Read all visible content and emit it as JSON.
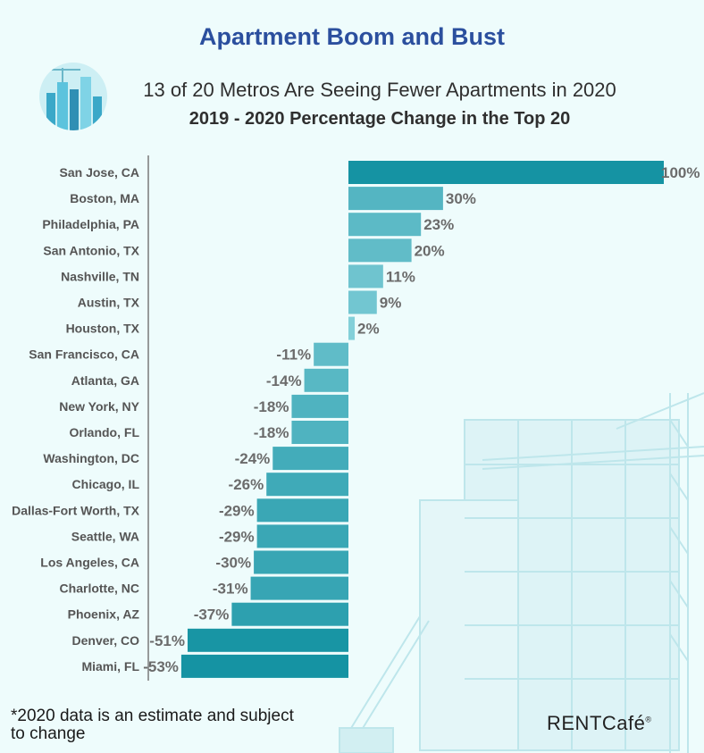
{
  "header": {
    "title": "Apartment Boom and Bust",
    "subtitle": "13 of 20 Metros Are Seeing Fewer Apartments in 2020",
    "subtitle2": "2019 - 2020 Percentage Change in the Top 20"
  },
  "footer": {
    "note": "*2020 data is an estimate and subject to change",
    "brand": "RENTCafé",
    "brand_mark": "®"
  },
  "colors": {
    "background": "#eefcfc",
    "title": "#2b4f9e",
    "bar_dark": "#1797a6",
    "bar_light": "#8fd6df",
    "label": "#6b6b6b"
  },
  "chart_data": {
    "type": "bar",
    "orientation": "horizontal",
    "categories": [
      "San Jose, CA",
      "Boston, MA",
      "Philadelphia, PA",
      "San Antonio, TX",
      "Nashville, TN",
      "Austin, TX",
      "Houston, TX",
      "San Francisco, CA",
      "Atlanta, GA",
      "New York, NY",
      "Orlando, FL",
      "Washington, DC",
      "Chicago, IL",
      "Dallas-Fort Worth, TX",
      "Seattle, WA",
      "Los Angeles, CA",
      "Charlotte, NC",
      "Phoenix, AZ",
      "Denver, CO",
      "Miami, FL"
    ],
    "values": [
      100,
      30,
      23,
      20,
      11,
      9,
      2,
      -11,
      -14,
      -18,
      -18,
      -24,
      -26,
      -29,
      -29,
      -30,
      -31,
      -37,
      -51,
      -53
    ],
    "value_labels": [
      "100%",
      "30%",
      "23%",
      "20%",
      "11%",
      "9%",
      "2%",
      "-11%",
      "-14%",
      "-18%",
      "-18%",
      "-24%",
      "-26%",
      "-29%",
      "-29%",
      "-30%",
      "-31%",
      "-37%",
      "-51%",
      "-53%"
    ],
    "unit": "%",
    "xlim": [
      -53,
      100
    ],
    "grid": false,
    "legend": "none"
  }
}
